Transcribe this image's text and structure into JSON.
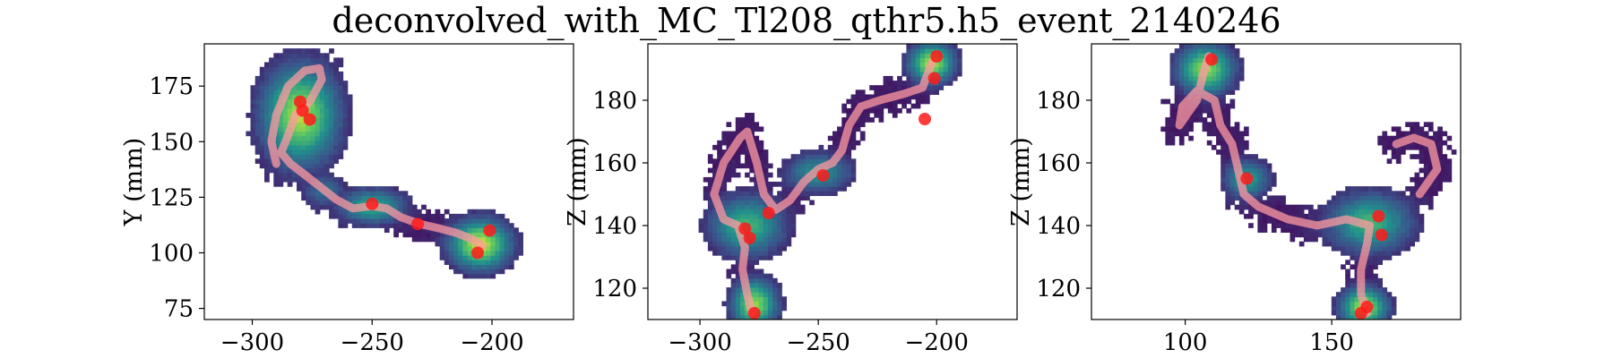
{
  "figure": {
    "title": "deconvolved_with_MC_Tl208_qthr5.h5_event_2140246"
  },
  "colors": {
    "background": "#ffffff",
    "axes": "#000000",
    "track": "#ff9aa2",
    "blob": "#ff1a1a",
    "colormap": [
      "#440154",
      "#3b528b",
      "#21908d",
      "#5dc863",
      "#fde725"
    ]
  },
  "chart_data": [
    {
      "type": "heatmap",
      "xlabel": "",
      "ylabel": "Y (mm)",
      "xlim": [
        -320,
        -166
      ],
      "ylim": [
        70,
        194
      ],
      "xticks": [
        -300,
        -250,
        -200
      ],
      "yticks": [
        75,
        100,
        125,
        150,
        175
      ],
      "track": [
        [
          -290,
          140
        ],
        [
          -292,
          150
        ],
        [
          -290,
          162
        ],
        [
          -285,
          175
        ],
        [
          -278,
          182
        ],
        [
          -272,
          183
        ],
        [
          -271,
          178
        ],
        [
          -276,
          168
        ],
        [
          -282,
          162
        ],
        [
          -285,
          153
        ],
        [
          -288,
          145
        ],
        [
          -284,
          140
        ],
        [
          -278,
          135
        ],
        [
          -272,
          130
        ],
        [
          -265,
          124
        ],
        [
          -258,
          120
        ],
        [
          -250,
          121
        ],
        [
          -244,
          120
        ],
        [
          -238,
          116
        ],
        [
          -230,
          113
        ],
        [
          -222,
          111
        ],
        [
          -215,
          109
        ],
        [
          -208,
          106
        ],
        [
          -204,
          103
        ]
      ],
      "blobs": [
        [
          -280,
          168
        ],
        [
          -276,
          160
        ],
        [
          -279,
          164
        ],
        [
          -250,
          122
        ],
        [
          -201,
          110
        ],
        [
          -206,
          100
        ],
        [
          -231,
          113
        ]
      ],
      "clusters": [
        {
          "x": -280,
          "y": 162,
          "sx": 10,
          "sy": 14,
          "peak": 0.85
        },
        {
          "x": -270,
          "y": 128,
          "sx": 6,
          "sy": 5,
          "peak": 0.3
        },
        {
          "x": -250,
          "y": 121,
          "sx": 9,
          "sy": 5,
          "peak": 0.55
        },
        {
          "x": -205,
          "y": 104,
          "sx": 8,
          "sy": 7,
          "peak": 0.9
        }
      ]
    },
    {
      "type": "heatmap",
      "xlabel": "",
      "ylabel": "Z (mm)",
      "xlim": [
        -322,
        -166
      ],
      "ylim": [
        110,
        198
      ],
      "xticks": [
        -300,
        -250,
        -200
      ],
      "yticks": [
        120,
        140,
        160,
        180
      ],
      "track": [
        [
          -278,
          112
        ],
        [
          -280,
          118
        ],
        [
          -282,
          126
        ],
        [
          -281,
          133
        ],
        [
          -284,
          140
        ],
        [
          -290,
          142
        ],
        [
          -294,
          150
        ],
        [
          -290,
          160
        ],
        [
          -283,
          168
        ],
        [
          -280,
          170
        ],
        [
          -276,
          160
        ],
        [
          -273,
          150
        ],
        [
          -268,
          145
        ],
        [
          -262,
          148
        ],
        [
          -256,
          154
        ],
        [
          -250,
          158
        ],
        [
          -244,
          160
        ],
        [
          -240,
          164
        ],
        [
          -237,
          172
        ],
        [
          -232,
          178
        ],
        [
          -224,
          180
        ],
        [
          -214,
          182
        ],
        [
          -206,
          184
        ],
        [
          -202,
          192
        ]
      ],
      "blobs": [
        [
          -281,
          139
        ],
        [
          -279,
          136
        ],
        [
          -277,
          112
        ],
        [
          -248,
          156
        ],
        [
          -205,
          174
        ],
        [
          -201,
          187
        ],
        [
          -200,
          194
        ],
        [
          -271,
          144
        ]
      ],
      "clusters": [
        {
          "x": -280,
          "y": 140,
          "sx": 10,
          "sy": 6,
          "peak": 0.6
        },
        {
          "x": -277,
          "y": 115,
          "sx": 6,
          "sy": 5,
          "peak": 0.8
        },
        {
          "x": -250,
          "y": 157,
          "sx": 9,
          "sy": 4,
          "peak": 0.45
        },
        {
          "x": -202,
          "y": 192,
          "sx": 6,
          "sy": 4,
          "peak": 0.85
        }
      ]
    },
    {
      "type": "heatmap",
      "xlabel": "",
      "ylabel": "Z (mm)",
      "xlim": [
        68,
        194
      ],
      "ylim": [
        110,
        198
      ],
      "xticks": [
        100,
        150
      ],
      "yticks": [
        120,
        140,
        160,
        180
      ],
      "track": [
        [
          162,
          112
        ],
        [
          160,
          118
        ],
        [
          160,
          126
        ],
        [
          162,
          134
        ],
        [
          163,
          140
        ],
        [
          155,
          142
        ],
        [
          145,
          140
        ],
        [
          135,
          142
        ],
        [
          125,
          146
        ],
        [
          120,
          150
        ],
        [
          118,
          158
        ],
        [
          116,
          166
        ],
        [
          112,
          172
        ],
        [
          110,
          180
        ],
        [
          104,
          183
        ],
        [
          99,
          178
        ],
        [
          98,
          172
        ],
        [
          104,
          180
        ],
        [
          106,
          188
        ],
        [
          108,
          194
        ],
        [
          180,
          150
        ],
        [
          186,
          158
        ],
        [
          184,
          166
        ],
        [
          178,
          168
        ],
        [
          172,
          166
        ]
      ],
      "blobs": [
        [
          109,
          193
        ],
        [
          121,
          155
        ],
        [
          166,
          143
        ],
        [
          167,
          137
        ],
        [
          162,
          114
        ],
        [
          160,
          112
        ]
      ],
      "clusters": [
        {
          "x": 107,
          "y": 190,
          "sx": 6,
          "sy": 5,
          "peak": 0.8
        },
        {
          "x": 121,
          "y": 155,
          "sx": 5,
          "sy": 4,
          "peak": 0.5
        },
        {
          "x": 163,
          "y": 141,
          "sx": 9,
          "sy": 6,
          "peak": 0.6
        },
        {
          "x": 161,
          "y": 114,
          "sx": 5,
          "sy": 4,
          "peak": 0.85
        }
      ]
    }
  ]
}
